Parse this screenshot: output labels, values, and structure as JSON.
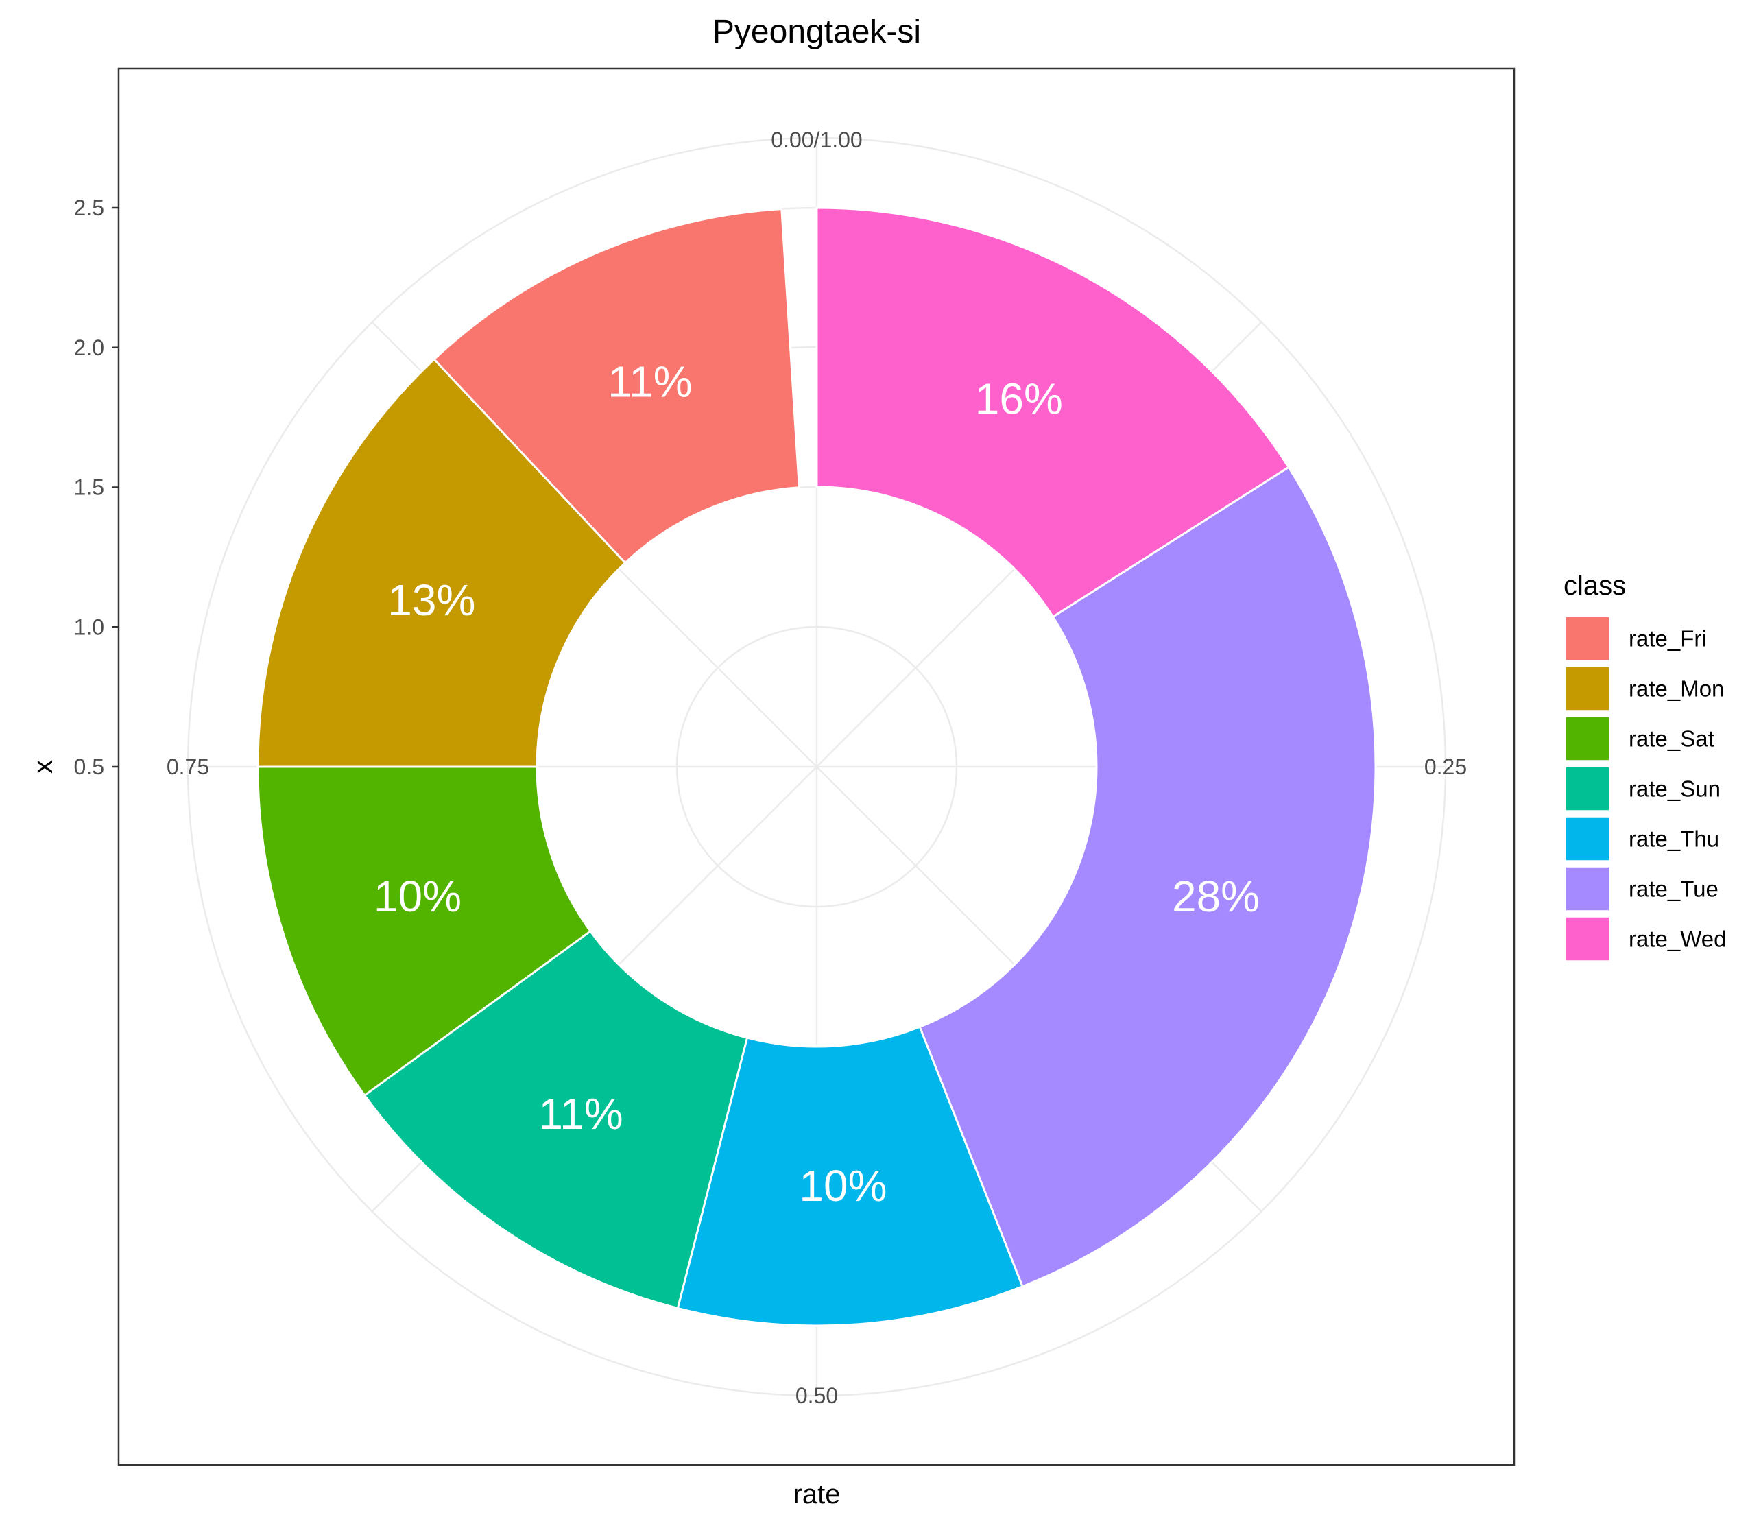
{
  "chart_data": {
    "type": "pie",
    "title": "Pyeongtaek-si",
    "xlabel": "rate",
    "ylabel": "x",
    "y_ticks": [
      "0.5",
      "1.0",
      "1.5",
      "2.0",
      "2.5"
    ],
    "angle_ticks": [
      "0.00/1.00",
      "0.25",
      "0.50",
      "0.75"
    ],
    "legend_title": "class",
    "legend_position": "right",
    "slices": [
      {
        "class": "rate_Wed",
        "value": 0.16,
        "label": "16%",
        "color": "#FF61CC"
      },
      {
        "class": "rate_Tue",
        "value": 0.28,
        "label": "28%",
        "color": "#A58AFF"
      },
      {
        "class": "rate_Thu",
        "value": 0.1,
        "label": "10%",
        "color": "#00B6EB"
      },
      {
        "class": "rate_Sun",
        "value": 0.11,
        "label": "11%",
        "color": "#00C094"
      },
      {
        "class": "rate_Sat",
        "value": 0.1,
        "label": "10%",
        "color": "#53B400"
      },
      {
        "class": "rate_Mon",
        "value": 0.13,
        "label": "13%",
        "color": "#C49A00"
      },
      {
        "class": "rate_Fri",
        "value": 0.11,
        "label": "11%",
        "color": "#F8766D"
      }
    ],
    "legend": [
      {
        "label": "rate_Fri",
        "color": "#F8766D"
      },
      {
        "label": "rate_Mon",
        "color": "#C49A00"
      },
      {
        "label": "rate_Sat",
        "color": "#53B400"
      },
      {
        "label": "rate_Sun",
        "color": "#00C094"
      },
      {
        "label": "rate_Thu",
        "color": "#00B6EB"
      },
      {
        "label": "rate_Tue",
        "color": "#A58AFF"
      },
      {
        "label": "rate_Wed",
        "color": "#FF61CC"
      }
    ],
    "grid": true
  }
}
